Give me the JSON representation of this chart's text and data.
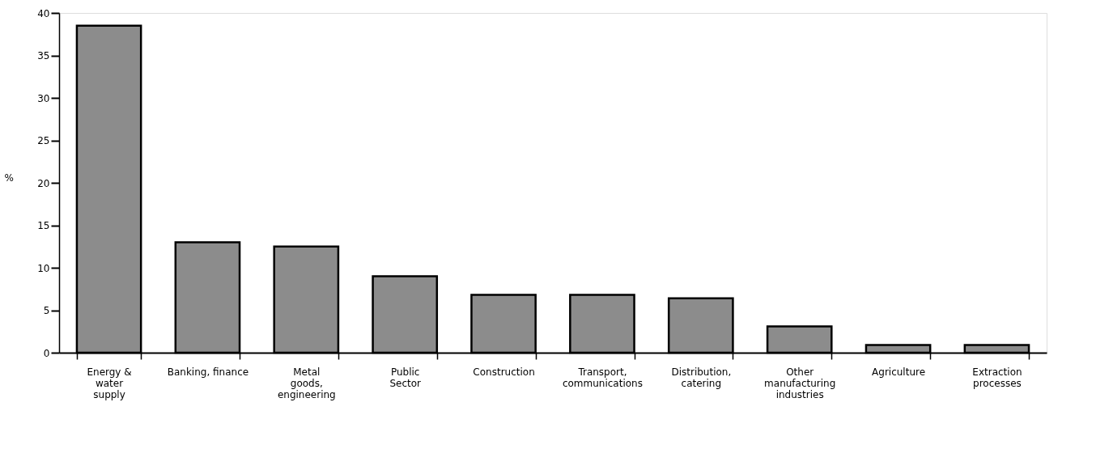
{
  "chart_data": {
    "type": "bar",
    "ylabel": "%",
    "categories": [
      "Energy &\nwater\nsupply",
      "Banking, finance",
      "Metal\ngoods,\nengineering",
      "Public\nSector",
      "Construction",
      "Transport,\ncommunications",
      "Distribution,\ncatering",
      "Other\nmanufacturing\nindustries",
      "Agriculture",
      "Extraction\nprocesses"
    ],
    "values": [
      38.5,
      13.0,
      12.5,
      9.0,
      6.8,
      6.8,
      6.4,
      3.1,
      0.9,
      0.9
    ],
    "color": "#8c8c8c",
    "ylim": [
      0,
      40
    ],
    "yticks": [
      0,
      5,
      10,
      15,
      20,
      25,
      30,
      35,
      40
    ],
    "grid": false
  }
}
